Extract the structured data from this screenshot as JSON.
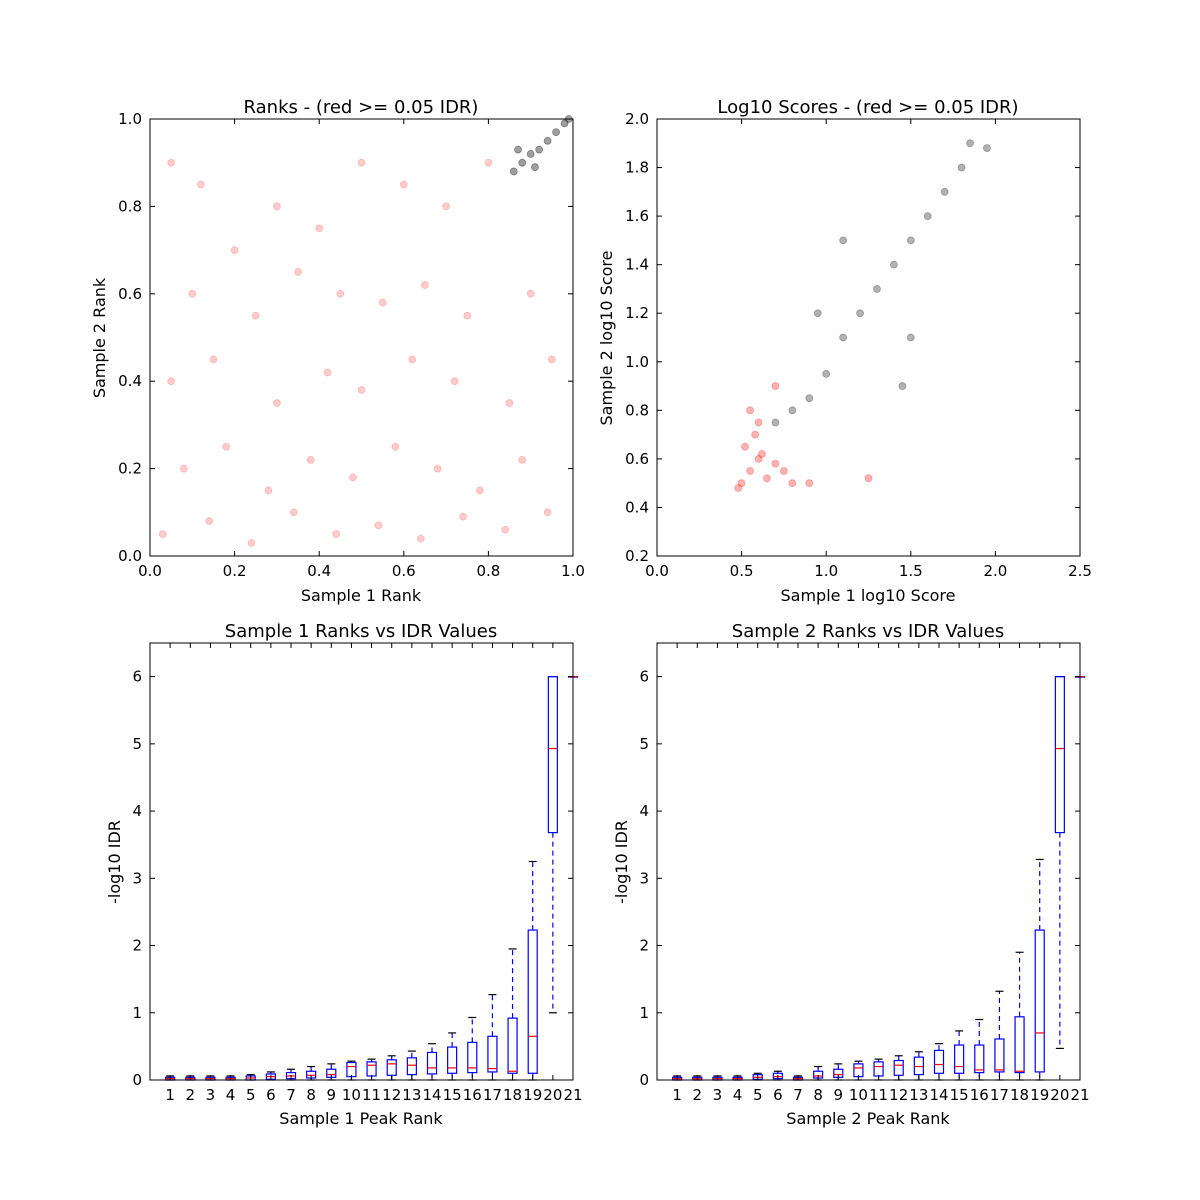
{
  "chart_data": [
    {
      "type": "scatter",
      "title": "Ranks - (red >= 0.05 IDR)",
      "xlabel": "Sample 1 Rank",
      "ylabel": "Sample 2 Rank",
      "xlim": [
        0.0,
        1.0
      ],
      "ylim": [
        0.0,
        1.0
      ],
      "xticks": [
        "0.0",
        "0.2",
        "0.4",
        "0.6",
        "0.8",
        "1.0"
      ],
      "yticks": [
        "0.0",
        "0.2",
        "0.4",
        "0.6",
        "0.8",
        "1.0"
      ],
      "grid": false,
      "series": [
        {
          "color": "#ff0000",
          "marker_alpha": 0.08,
          "points": [
            [
              0.05,
              0.9
            ],
            [
              0.12,
              0.85
            ],
            [
              0.2,
              0.7
            ],
            [
              0.3,
              0.8
            ],
            [
              0.4,
              0.75
            ],
            [
              0.5,
              0.9
            ],
            [
              0.6,
              0.85
            ],
            [
              0.7,
              0.8
            ],
            [
              0.8,
              0.9
            ],
            [
              0.1,
              0.6
            ],
            [
              0.25,
              0.55
            ],
            [
              0.35,
              0.65
            ],
            [
              0.45,
              0.6
            ],
            [
              0.55,
              0.58
            ],
            [
              0.65,
              0.62
            ],
            [
              0.75,
              0.55
            ],
            [
              0.9,
              0.6
            ],
            [
              0.05,
              0.4
            ],
            [
              0.15,
              0.45
            ],
            [
              0.3,
              0.35
            ],
            [
              0.42,
              0.42
            ],
            [
              0.5,
              0.38
            ],
            [
              0.62,
              0.45
            ],
            [
              0.72,
              0.4
            ],
            [
              0.85,
              0.35
            ],
            [
              0.95,
              0.45
            ],
            [
              0.08,
              0.2
            ],
            [
              0.18,
              0.25
            ],
            [
              0.28,
              0.15
            ],
            [
              0.38,
              0.22
            ],
            [
              0.48,
              0.18
            ],
            [
              0.58,
              0.25
            ],
            [
              0.68,
              0.2
            ],
            [
              0.78,
              0.15
            ],
            [
              0.88,
              0.22
            ],
            [
              0.03,
              0.05
            ],
            [
              0.14,
              0.08
            ],
            [
              0.24,
              0.03
            ],
            [
              0.34,
              0.1
            ],
            [
              0.44,
              0.05
            ],
            [
              0.54,
              0.07
            ],
            [
              0.64,
              0.04
            ],
            [
              0.74,
              0.09
            ],
            [
              0.84,
              0.06
            ],
            [
              0.94,
              0.1
            ]
          ]
        },
        {
          "color": "#000000",
          "marker_alpha": 0.15,
          "points": [
            [
              0.86,
              0.88
            ],
            [
              0.88,
              0.9
            ],
            [
              0.9,
              0.92
            ],
            [
              0.92,
              0.93
            ],
            [
              0.94,
              0.95
            ],
            [
              0.96,
              0.97
            ],
            [
              0.98,
              0.99
            ],
            [
              0.99,
              1.0
            ],
            [
              0.87,
              0.93
            ],
            [
              0.91,
              0.89
            ]
          ]
        }
      ]
    },
    {
      "type": "scatter",
      "title": "Log10 Scores - (red >= 0.05 IDR)",
      "xlabel": "Sample 1 log10 Score",
      "ylabel": "Sample 2 log10 Score",
      "xlim": [
        0.0,
        2.5
      ],
      "ylim": [
        0.2,
        2.0
      ],
      "xticks": [
        "0.0",
        "0.5",
        "1.0",
        "1.5",
        "2.0",
        "2.5"
      ],
      "yticks": [
        "0.2",
        "0.4",
        "0.6",
        "0.8",
        "1.0",
        "1.2",
        "1.4",
        "1.6",
        "1.8",
        "2.0"
      ],
      "grid": false,
      "series": [
        {
          "color": "#ff0000",
          "marker_alpha": 0.12,
          "points": [
            [
              0.5,
              0.5
            ],
            [
              0.55,
              0.55
            ],
            [
              0.6,
              0.6
            ],
            [
              0.52,
              0.65
            ],
            [
              0.58,
              0.7
            ],
            [
              0.65,
              0.52
            ],
            [
              0.7,
              0.58
            ],
            [
              0.62,
              0.62
            ],
            [
              0.48,
              0.48
            ],
            [
              0.75,
              0.55
            ],
            [
              0.8,
              0.5
            ],
            [
              0.9,
              0.5
            ],
            [
              0.6,
              0.75
            ],
            [
              0.55,
              0.8
            ],
            [
              0.7,
              0.9
            ],
            [
              1.25,
              0.52
            ]
          ]
        },
        {
          "color": "#000000",
          "marker_alpha": 0.12,
          "points": [
            [
              0.7,
              0.75
            ],
            [
              0.8,
              0.8
            ],
            [
              0.9,
              0.85
            ],
            [
              1.0,
              0.95
            ],
            [
              1.1,
              1.1
            ],
            [
              1.2,
              1.2
            ],
            [
              1.3,
              1.3
            ],
            [
              1.4,
              1.4
            ],
            [
              1.5,
              1.5
            ],
            [
              1.6,
              1.6
            ],
            [
              1.7,
              1.7
            ],
            [
              1.8,
              1.8
            ],
            [
              1.85,
              1.9
            ],
            [
              1.95,
              1.88
            ],
            [
              1.5,
              1.1
            ],
            [
              1.45,
              0.9
            ],
            [
              1.1,
              1.5
            ],
            [
              0.95,
              1.2
            ]
          ]
        }
      ]
    },
    {
      "type": "box",
      "title": "Sample 1 Ranks vs IDR Values",
      "xlabel": "Sample 1 Peak Rank",
      "ylabel": "-log10 IDR",
      "xlim": [
        0,
        21
      ],
      "ylim": [
        0,
        6.5
      ],
      "xticks": [
        "1",
        "2",
        "3",
        "4",
        "5",
        "6",
        "7",
        "8",
        "9",
        "10",
        "11",
        "12",
        "13",
        "14",
        "15",
        "16",
        "17",
        "18",
        "19",
        "20",
        "21"
      ],
      "yticks": [
        "0",
        "1",
        "2",
        "3",
        "4",
        "5",
        "6"
      ],
      "grid": false,
      "boxes": [
        {
          "position": 1,
          "q1": 0.0,
          "median": 0.02,
          "q3": 0.04,
          "whisker_low": 0.0,
          "whisker_high": 0.06
        },
        {
          "position": 2,
          "q1": 0.0,
          "median": 0.02,
          "q3": 0.04,
          "whisker_low": 0.0,
          "whisker_high": 0.06
        },
        {
          "position": 3,
          "q1": 0.0,
          "median": 0.02,
          "q3": 0.04,
          "whisker_low": 0.0,
          "whisker_high": 0.06
        },
        {
          "position": 4,
          "q1": 0.0,
          "median": 0.02,
          "q3": 0.04,
          "whisker_low": 0.0,
          "whisker_high": 0.06
        },
        {
          "position": 5,
          "q1": 0.0,
          "median": 0.03,
          "q3": 0.06,
          "whisker_low": 0.0,
          "whisker_high": 0.08
        },
        {
          "position": 6,
          "q1": 0.01,
          "median": 0.05,
          "q3": 0.09,
          "whisker_low": 0.0,
          "whisker_high": 0.12
        },
        {
          "position": 7,
          "q1": 0.02,
          "median": 0.06,
          "q3": 0.11,
          "whisker_low": 0.0,
          "whisker_high": 0.16
        },
        {
          "position": 8,
          "q1": 0.03,
          "median": 0.07,
          "q3": 0.13,
          "whisker_low": 0.0,
          "whisker_high": 0.2
        },
        {
          "position": 9,
          "q1": 0.04,
          "median": 0.08,
          "q3": 0.16,
          "whisker_low": 0.0,
          "whisker_high": 0.24
        },
        {
          "position": 10,
          "q1": 0.05,
          "median": 0.2,
          "q3": 0.26,
          "whisker_low": 0.0,
          "whisker_high": 0.28
        },
        {
          "position": 11,
          "q1": 0.06,
          "median": 0.22,
          "q3": 0.27,
          "whisker_low": 0.0,
          "whisker_high": 0.31
        },
        {
          "position": 12,
          "q1": 0.07,
          "median": 0.24,
          "q3": 0.3,
          "whisker_low": 0.0,
          "whisker_high": 0.36
        },
        {
          "position": 13,
          "q1": 0.08,
          "median": 0.22,
          "q3": 0.33,
          "whisker_low": 0.0,
          "whisker_high": 0.43
        },
        {
          "position": 14,
          "q1": 0.09,
          "median": 0.18,
          "q3": 0.41,
          "whisker_low": 0.0,
          "whisker_high": 0.54
        },
        {
          "position": 15,
          "q1": 0.1,
          "median": 0.18,
          "q3": 0.49,
          "whisker_low": 0.0,
          "whisker_high": 0.7
        },
        {
          "position": 16,
          "q1": 0.11,
          "median": 0.18,
          "q3": 0.56,
          "whisker_low": 0.0,
          "whisker_high": 0.93
        },
        {
          "position": 17,
          "q1": 0.12,
          "median": 0.17,
          "q3": 0.65,
          "whisker_low": 0.0,
          "whisker_high": 1.27
        },
        {
          "position": 18,
          "q1": 0.1,
          "median": 0.13,
          "q3": 0.92,
          "whisker_low": 0.0,
          "whisker_high": 1.95
        },
        {
          "position": 19,
          "q1": 0.1,
          "median": 0.65,
          "q3": 2.23,
          "whisker_low": 0.0,
          "whisker_high": 3.25
        },
        {
          "position": 20,
          "q1": 3.68,
          "median": 4.93,
          "q3": 6.0,
          "whisker_low": 1.0,
          "whisker_high": 6.0
        },
        {
          "position": 21,
          "q1": 6.0,
          "median": 6.0,
          "q3": 6.0,
          "whisker_low": 6.0,
          "whisker_high": 6.0
        }
      ]
    },
    {
      "type": "box",
      "title": "Sample 2 Ranks vs IDR Values",
      "xlabel": "Sample 2 Peak Rank",
      "ylabel": "-log10 IDR",
      "xlim": [
        0,
        21
      ],
      "ylim": [
        0,
        6.5
      ],
      "xticks": [
        "1",
        "2",
        "3",
        "4",
        "5",
        "6",
        "7",
        "8",
        "9",
        "10",
        "11",
        "12",
        "13",
        "14",
        "15",
        "16",
        "17",
        "18",
        "19",
        "20",
        "21"
      ],
      "yticks": [
        "0",
        "1",
        "2",
        "3",
        "4",
        "5",
        "6"
      ],
      "grid": false,
      "boxes": [
        {
          "position": 1,
          "q1": 0.0,
          "median": 0.02,
          "q3": 0.04,
          "whisker_low": 0.0,
          "whisker_high": 0.06
        },
        {
          "position": 2,
          "q1": 0.0,
          "median": 0.02,
          "q3": 0.04,
          "whisker_low": 0.0,
          "whisker_high": 0.06
        },
        {
          "position": 3,
          "q1": 0.0,
          "median": 0.02,
          "q3": 0.04,
          "whisker_low": 0.0,
          "whisker_high": 0.06
        },
        {
          "position": 4,
          "q1": 0.0,
          "median": 0.02,
          "q3": 0.04,
          "whisker_low": 0.0,
          "whisker_high": 0.06
        },
        {
          "position": 5,
          "q1": 0.01,
          "median": 0.04,
          "q3": 0.08,
          "whisker_low": 0.0,
          "whisker_high": 0.1
        },
        {
          "position": 6,
          "q1": 0.02,
          "median": 0.05,
          "q3": 0.1,
          "whisker_low": 0.0,
          "whisker_high": 0.13
        },
        {
          "position": 7,
          "q1": 0.0,
          "median": 0.02,
          "q3": 0.04,
          "whisker_low": 0.0,
          "whisker_high": 0.06
        },
        {
          "position": 8,
          "q1": 0.03,
          "median": 0.06,
          "q3": 0.13,
          "whisker_low": 0.0,
          "whisker_high": 0.2
        },
        {
          "position": 9,
          "q1": 0.04,
          "median": 0.08,
          "q3": 0.16,
          "whisker_low": 0.0,
          "whisker_high": 0.24
        },
        {
          "position": 10,
          "q1": 0.05,
          "median": 0.18,
          "q3": 0.24,
          "whisker_low": 0.0,
          "whisker_high": 0.28
        },
        {
          "position": 11,
          "q1": 0.06,
          "median": 0.2,
          "q3": 0.27,
          "whisker_low": 0.0,
          "whisker_high": 0.31
        },
        {
          "position": 12,
          "q1": 0.07,
          "median": 0.22,
          "q3": 0.29,
          "whisker_low": 0.0,
          "whisker_high": 0.36
        },
        {
          "position": 13,
          "q1": 0.08,
          "median": 0.2,
          "q3": 0.34,
          "whisker_low": 0.0,
          "whisker_high": 0.42
        },
        {
          "position": 14,
          "q1": 0.1,
          "median": 0.23,
          "q3": 0.44,
          "whisker_low": 0.0,
          "whisker_high": 0.54
        },
        {
          "position": 15,
          "q1": 0.1,
          "median": 0.2,
          "q3": 0.52,
          "whisker_low": 0.0,
          "whisker_high": 0.73
        },
        {
          "position": 16,
          "q1": 0.11,
          "median": 0.15,
          "q3": 0.52,
          "whisker_low": 0.0,
          "whisker_high": 0.9
        },
        {
          "position": 17,
          "q1": 0.12,
          "median": 0.15,
          "q3": 0.61,
          "whisker_low": 0.0,
          "whisker_high": 1.32
        },
        {
          "position": 18,
          "q1": 0.11,
          "median": 0.13,
          "q3": 0.94,
          "whisker_low": 0.0,
          "whisker_high": 1.9
        },
        {
          "position": 19,
          "q1": 0.12,
          "median": 0.7,
          "q3": 2.23,
          "whisker_low": 0.0,
          "whisker_high": 3.28
        },
        {
          "position": 20,
          "q1": 3.68,
          "median": 4.93,
          "q3": 6.0,
          "whisker_low": 0.47,
          "whisker_high": 6.0
        },
        {
          "position": 21,
          "q1": 6.0,
          "median": 6.0,
          "q3": 6.0,
          "whisker_low": 6.0,
          "whisker_high": 6.0
        }
      ]
    }
  ]
}
